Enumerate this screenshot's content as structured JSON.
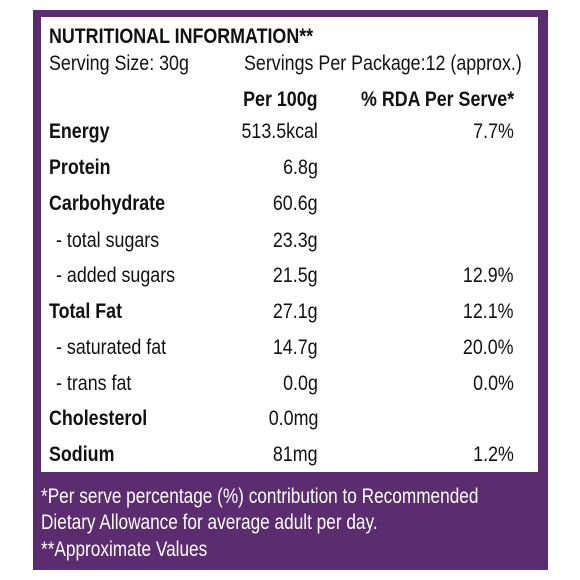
{
  "header": {
    "title": "NUTRITIONAL INFORMATION**",
    "serving_size": "Serving Size: 30g",
    "servings_per_package": "Servings Per Package:12 (approx.)",
    "col_per100": "Per 100g",
    "col_rda": "% RDA Per Serve*"
  },
  "rows": [
    {
      "name": "Energy",
      "per100": "513.5kcal",
      "rda": "7.7%"
    },
    {
      "name": "Protein",
      "per100": "6.8g",
      "rda": ""
    },
    {
      "name": "Carbohydrate",
      "per100": "60.6g",
      "rda": ""
    },
    {
      "name": "- total sugars",
      "per100": "23.3g",
      "rda": ""
    },
    {
      "name": "- added sugars",
      "per100": "21.5g",
      "rda": "12.9%"
    },
    {
      "name": "Total Fat",
      "per100": "27.1g",
      "rda": "12.1%"
    },
    {
      "name": "- saturated fat",
      "per100": "14.7g",
      "rda": "20.0%"
    },
    {
      "name": "- trans fat",
      "per100": "0.0g",
      "rda": "0.0%"
    },
    {
      "name": "Cholesterol",
      "per100": "0.0mg",
      "rda": ""
    },
    {
      "name": "Sodium",
      "per100": "81mg",
      "rda": "1.2%"
    }
  ],
  "footer": {
    "line1": "*Per serve percentage (%) contribution to Recommended",
    "line2": "Dietary Allowance for average adult per day.",
    "line3": "**Approximate Values"
  },
  "colors": {
    "border": "#5b2c6f",
    "text": "#111111",
    "footer_text": "#ffffff"
  }
}
